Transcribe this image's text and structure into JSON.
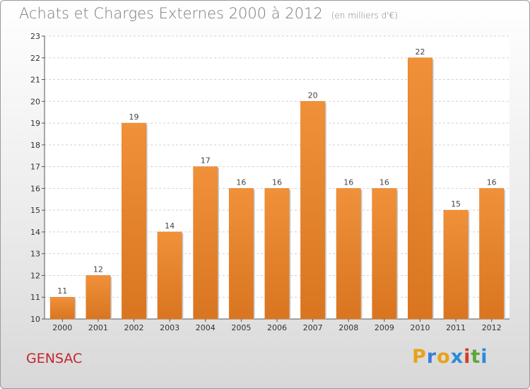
{
  "title": "Achats et Charges Externes 2000 à 2012",
  "subtitle": "(en milliers d'€)",
  "commune": "GENSAC",
  "logo": {
    "text": "Proxiti",
    "letters": [
      "P",
      "r",
      "o",
      "x",
      "i",
      "t",
      "i"
    ],
    "colors": [
      "#e8a21a",
      "#3a7dd8",
      "#e8a21a",
      "#2b8ad8",
      "#d63a2a",
      "#5aa83a",
      "#2b8ad8"
    ]
  },
  "colors": {
    "bar": "#f0913a",
    "bar_dark": "#d97520",
    "accent": "#c4262e"
  },
  "chart_data": {
    "type": "bar",
    "title": "Achats et Charges Externes 2000 à 2012",
    "subtitle": "(en milliers d'€)",
    "categories": [
      "2000",
      "2001",
      "2002",
      "2003",
      "2004",
      "2005",
      "2006",
      "2007",
      "2008",
      "2009",
      "2010",
      "2011",
      "2012"
    ],
    "values": [
      11,
      12,
      19,
      14,
      17,
      16,
      16,
      20,
      16,
      16,
      22,
      15,
      16
    ],
    "ylim": [
      10,
      23
    ],
    "yticks": [
      10,
      11,
      12,
      13,
      14,
      15,
      16,
      17,
      18,
      19,
      20,
      21,
      22,
      23
    ],
    "grid": true,
    "xlabel": "",
    "ylabel": ""
  }
}
